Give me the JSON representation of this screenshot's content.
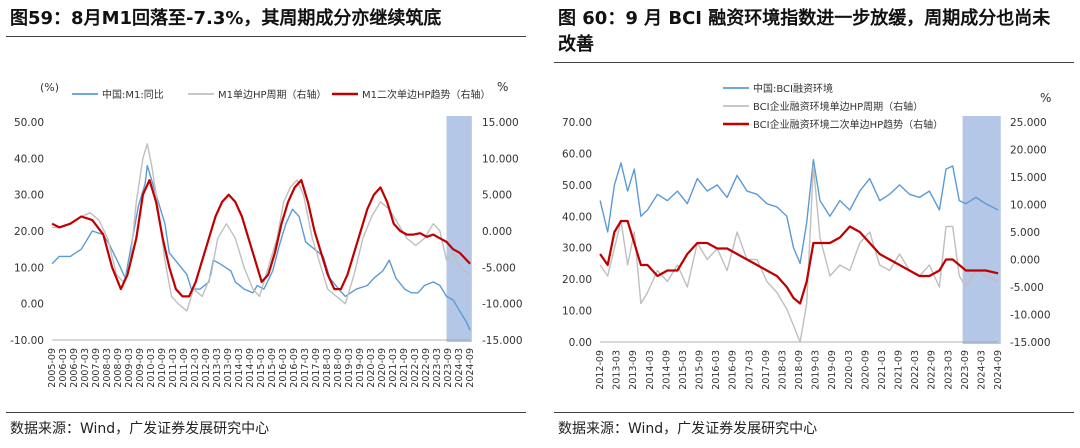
{
  "charts": [
    {
      "title": "图59：8月M1回落至-7.3%，其周期成分亦继续筑底",
      "source": "数据来源：Wind，广发证券发展研究中心",
      "chart_data": {
        "type": "line",
        "left_unit": "(%)",
        "right_unit": "%",
        "left_axis": {
          "min": -10,
          "max": 50,
          "ticks": [
            "-10.00",
            "0.00",
            "10.00",
            "20.00",
            "30.00",
            "40.00",
            "50.00"
          ]
        },
        "right_axis": {
          "min": -15,
          "max": 15,
          "ticks": [
            "-15.000",
            "-10.000",
            "-5.000",
            "0.000",
            "5.000",
            "10.000",
            "15.000"
          ]
        },
        "x_axis": {
          "start": 2005.667,
          "end": 2024.667,
          "tick_labels": [
            "2005-09",
            "2006-03",
            "2006-09",
            "2007-03",
            "2007-09",
            "2008-03",
            "2008-09",
            "2009-03",
            "2009-09",
            "2010-03",
            "2010-09",
            "2011-03",
            "2011-09",
            "2012-03",
            "2012-09",
            "2013-03",
            "2013-09",
            "2014-03",
            "2014-09",
            "2015-03",
            "2015-09",
            "2016-03",
            "2016-09",
            "2017-03",
            "2017-09",
            "2018-03",
            "2018-09",
            "2019-03",
            "2019-09",
            "2020-03",
            "2020-09",
            "2021-03",
            "2021-09",
            "2022-03",
            "2022-09",
            "2023-03",
            "2023-09",
            "2024-03",
            "2024-09"
          ]
        },
        "highlight": {
          "from": 2023.6,
          "to": 2024.75,
          "color": "#b4c7e7"
        },
        "series": [
          {
            "name": "中国:M1:同比",
            "axis": "left",
            "color": "#5b9bd5",
            "width": 1.4,
            "x": [
              2005.67,
              2006.0,
              2006.5,
              2007.0,
              2007.5,
              2008.0,
              2008.3,
              2008.7,
              2009.0,
              2009.3,
              2009.6,
              2009.9,
              2010.0,
              2010.4,
              2010.8,
              2011.0,
              2011.4,
              2011.8,
              2012.0,
              2012.4,
              2012.8,
              2013.0,
              2013.3,
              2013.8,
              2014.0,
              2014.4,
              2014.8,
              2015.0,
              2015.3,
              2015.7,
              2016.0,
              2016.3,
              2016.6,
              2016.9,
              2017.2,
              2017.6,
              2018.0,
              2018.3,
              2018.7,
              2019.0,
              2019.5,
              2020.0,
              2020.3,
              2020.7,
              2021.0,
              2021.3,
              2021.7,
              2022.0,
              2022.3,
              2022.6,
              2023.0,
              2023.3,
              2023.6,
              2023.9,
              2024.1,
              2024.3,
              2024.5,
              2024.67
            ],
            "y": [
              11,
              13,
              13,
              15,
              20,
              19,
              16,
              11,
              7,
              17,
              27,
              33,
              38,
              30,
              22,
              14,
              11,
              8,
              4,
              4,
              6,
              12,
              11,
              9,
              6,
              4,
              3,
              5,
              4,
              9,
              16,
              22,
              26,
              24,
              17,
              15,
              13,
              7,
              4,
              2,
              4,
              5,
              7,
              9,
              12,
              7,
              4,
              3,
              3,
              5,
              6,
              5,
              2,
              1,
              -1,
              -3,
              -5,
              -7.3
            ]
          },
          {
            "name": "M1单边HP周期（右轴）",
            "axis": "right",
            "color": "#bfbfbf",
            "width": 1.4,
            "x": [
              2005.67,
              2006.0,
              2006.5,
              2007.0,
              2007.4,
              2007.8,
              2008.2,
              2008.6,
              2008.9,
              2009.2,
              2009.5,
              2009.8,
              2010.0,
              2010.2,
              2010.5,
              2010.8,
              2011.1,
              2011.4,
              2011.8,
              2012.1,
              2012.5,
              2012.9,
              2013.2,
              2013.6,
              2014.0,
              2014.4,
              2014.8,
              2015.1,
              2015.5,
              2015.9,
              2016.2,
              2016.5,
              2016.8,
              2017.1,
              2017.5,
              2017.9,
              2018.2,
              2018.6,
              2019.0,
              2019.4,
              2019.8,
              2020.2,
              2020.6,
              2021.0,
              2021.4,
              2021.8,
              2022.2,
              2022.6,
              2023.0,
              2023.3,
              2023.6,
              2023.9,
              2024.2,
              2024.67
            ],
            "y": [
              0.5,
              0.5,
              1,
              2,
              2.5,
              1.5,
              -1,
              -6,
              -7,
              -5,
              4,
              10,
              12,
              9,
              3,
              -4,
              -9,
              -10,
              -11,
              -8,
              -9,
              -6,
              -1,
              1,
              -1,
              -5,
              -8,
              -9,
              -5,
              -1,
              4,
              6,
              7,
              5,
              -1,
              -5,
              -8,
              -9,
              -10,
              -6,
              -1,
              2,
              4,
              3,
              1,
              -1,
              -2,
              -1,
              1,
              0,
              -4,
              -3,
              -5,
              -6
            ]
          },
          {
            "name": "M1二次单边HP趋势（右轴）",
            "axis": "right",
            "color": "#c00000",
            "width": 2.2,
            "x": [
              2005.67,
              2006.0,
              2006.5,
              2007.0,
              2007.5,
              2008.0,
              2008.4,
              2008.8,
              2009.1,
              2009.5,
              2009.8,
              2010.1,
              2010.4,
              2010.7,
              2011.0,
              2011.3,
              2011.6,
              2011.9,
              2012.2,
              2012.5,
              2012.8,
              2013.1,
              2013.4,
              2013.7,
              2014.0,
              2014.3,
              2014.6,
              2014.9,
              2015.2,
              2015.5,
              2015.8,
              2016.1,
              2016.4,
              2016.7,
              2017.0,
              2017.3,
              2017.6,
              2017.9,
              2018.2,
              2018.5,
              2018.8,
              2019.1,
              2019.4,
              2019.7,
              2020.0,
              2020.3,
              2020.6,
              2020.9,
              2021.2,
              2021.5,
              2021.8,
              2022.1,
              2022.4,
              2022.7,
              2023.0,
              2023.3,
              2023.6,
              2023.9,
              2024.2,
              2024.67
            ],
            "y": [
              1,
              0.5,
              1,
              2,
              1.5,
              -0.5,
              -5,
              -8,
              -6,
              -1,
              5,
              7,
              4,
              -1,
              -5,
              -8,
              -9,
              -9,
              -7,
              -4,
              -1,
              2,
              4,
              5,
              4,
              2,
              -1,
              -4,
              -7,
              -6,
              -3,
              1,
              4,
              6,
              7,
              4,
              0,
              -3,
              -6,
              -8,
              -8,
              -6,
              -3,
              0,
              3,
              5,
              6,
              4,
              1,
              0,
              -0.5,
              -0.5,
              -0.3,
              -0.8,
              -0.5,
              -1,
              -1.5,
              -2.5,
              -3,
              -4.5
            ]
          }
        ]
      }
    },
    {
      "title": "图 60：9 月 BCI 融资环境指数进一步放缓，周期成分也尚未改善",
      "source": "数据来源：Wind，广发证券发展研究中心",
      "chart_data": {
        "type": "line",
        "left_unit": "",
        "right_unit": "%",
        "left_axis": {
          "min": 0,
          "max": 70,
          "ticks": [
            "0.00",
            "10.00",
            "20.00",
            "30.00",
            "40.00",
            "50.00",
            "60.00",
            "70.00"
          ]
        },
        "right_axis": {
          "min": -15,
          "max": 25,
          "ticks": [
            "-15.000",
            "-10.000",
            "-5.000",
            "0.000",
            "5.000",
            "10.000",
            "15.000",
            "20.000",
            "25.000"
          ]
        },
        "x_axis": {
          "start": 2012.667,
          "end": 2024.667,
          "tick_labels": [
            "2012-09",
            "2013-03",
            "2013-09",
            "2014-03",
            "2014-09",
            "2015-03",
            "2015-09",
            "2016-03",
            "2016-09",
            "2017-03",
            "2017-09",
            "2018-03",
            "2018-09",
            "2019-03",
            "2019-09",
            "2020-03",
            "2020-09",
            "2021-03",
            "2021-09",
            "2022-03",
            "2022-09",
            "2023-03",
            "2023-09",
            "2024-03",
            "2024-09"
          ]
        },
        "highlight": {
          "from": 2023.6,
          "to": 2024.75,
          "color": "#b4c7e7"
        },
        "series": [
          {
            "name": "中国:BCI融资环境",
            "axis": "left",
            "color": "#5b9bd5",
            "width": 1.4,
            "x": [
              2012.67,
              2012.9,
              2013.1,
              2013.3,
              2013.5,
              2013.7,
              2013.9,
              2014.1,
              2014.4,
              2014.7,
              2015.0,
              2015.3,
              2015.6,
              2015.9,
              2016.2,
              2016.5,
              2016.8,
              2017.1,
              2017.4,
              2017.7,
              2018.0,
              2018.3,
              2018.5,
              2018.7,
              2018.9,
              2019.1,
              2019.3,
              2019.6,
              2019.9,
              2020.2,
              2020.5,
              2020.8,
              2021.1,
              2021.4,
              2021.7,
              2022.0,
              2022.3,
              2022.6,
              2022.9,
              2023.1,
              2023.3,
              2023.5,
              2023.7,
              2024.0,
              2024.3,
              2024.67
            ],
            "y": [
              45,
              35,
              50,
              57,
              48,
              55,
              40,
              42,
              47,
              45,
              48,
              44,
              52,
              48,
              50,
              46,
              53,
              48,
              47,
              44,
              43,
              40,
              30,
              25,
              38,
              58,
              45,
              40,
              45,
              42,
              48,
              52,
              45,
              47,
              50,
              47,
              46,
              48,
              42,
              55,
              56,
              45,
              44,
              46,
              44,
              42
            ]
          },
          {
            "name": "BCI企业融资环境单边HP周期（右轴）",
            "axis": "right",
            "color": "#bfbfbf",
            "width": 1.4,
            "x": [
              2012.67,
              2012.9,
              2013.1,
              2013.3,
              2013.5,
              2013.7,
              2013.9,
              2014.1,
              2014.4,
              2014.7,
              2015.0,
              2015.3,
              2015.6,
              2015.9,
              2016.2,
              2016.5,
              2016.8,
              2017.1,
              2017.4,
              2017.7,
              2018.0,
              2018.3,
              2018.5,
              2018.7,
              2018.9,
              2019.1,
              2019.3,
              2019.6,
              2019.9,
              2020.2,
              2020.5,
              2020.8,
              2021.1,
              2021.4,
              2021.7,
              2022.0,
              2022.3,
              2022.6,
              2022.9,
              2023.1,
              2023.3,
              2023.5,
              2023.7,
              2024.0,
              2024.3,
              2024.67
            ],
            "y": [
              -1,
              -3,
              2,
              7,
              -1,
              5,
              -8,
              -6,
              -2,
              -4,
              -1,
              -5,
              3,
              0,
              2,
              -2,
              5,
              0,
              0,
              -4,
              -6,
              -9,
              -12,
              -15,
              -8,
              17,
              4,
              -3,
              -1,
              -2,
              3,
              5,
              -1,
              -2,
              1,
              -2,
              -3,
              -1,
              -5,
              6,
              6,
              -3,
              -5,
              -2,
              -3,
              -4
            ]
          },
          {
            "name": "BCI企业融资环境二次单边HP趋势（右轴）",
            "axis": "right",
            "color": "#c00000",
            "width": 2.2,
            "x": [
              2012.67,
              2012.9,
              2013.1,
              2013.3,
              2013.5,
              2013.7,
              2013.9,
              2014.1,
              2014.4,
              2014.7,
              2015.0,
              2015.3,
              2015.6,
              2015.9,
              2016.2,
              2016.5,
              2016.8,
              2017.1,
              2017.4,
              2017.7,
              2018.0,
              2018.3,
              2018.5,
              2018.7,
              2018.9,
              2019.1,
              2019.3,
              2019.6,
              2019.9,
              2020.2,
              2020.5,
              2020.8,
              2021.1,
              2021.4,
              2021.7,
              2022.0,
              2022.3,
              2022.6,
              2022.9,
              2023.1,
              2023.3,
              2023.5,
              2023.7,
              2024.0,
              2024.3,
              2024.67
            ],
            "y": [
              1,
              -1,
              5,
              7,
              7,
              3,
              -1,
              -1,
              -3,
              -2,
              -2,
              1,
              3,
              3,
              2,
              2,
              1,
              0,
              -1,
              -2,
              -3,
              -5,
              -7,
              -8,
              -4,
              3,
              3,
              3,
              4,
              6,
              5,
              3,
              1,
              0,
              -1,
              -2,
              -3,
              -3,
              -2,
              0,
              0,
              -1,
              -2,
              -2,
              -2,
              -2.5
            ]
          }
        ]
      }
    }
  ]
}
